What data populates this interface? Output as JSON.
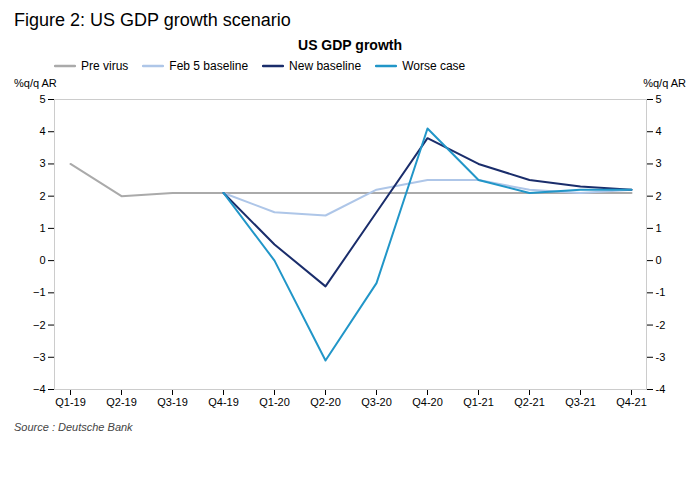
{
  "chart_data": {
    "type": "line",
    "title": "Figure 2: US GDP growth scenario",
    "subtitle": "US GDP growth",
    "ylabel": "%q/q AR",
    "y2label": "%q/q AR",
    "caption": "Source : Deutsche Bank",
    "categories": [
      "Q1-19",
      "Q2-19",
      "Q3-19",
      "Q4-19",
      "Q1-20",
      "Q2-20",
      "Q3-20",
      "Q4-20",
      "Q1-21",
      "Q2-21",
      "Q3-21",
      "Q4-21"
    ],
    "series": [
      {
        "name": "Pre virus",
        "color": "#aaaaaa",
        "values": [
          3.0,
          2.0,
          2.1,
          2.1,
          2.1,
          2.1,
          2.1,
          2.1,
          2.1,
          2.1,
          2.1,
          2.1
        ]
      },
      {
        "name": "Feb 5 baseline",
        "color": "#aec6e8",
        "values": [
          null,
          null,
          null,
          2.1,
          1.5,
          1.4,
          2.2,
          2.5,
          2.5,
          2.2,
          2.1,
          2.2
        ]
      },
      {
        "name": "New baseline",
        "color": "#1a2d6b",
        "values": [
          null,
          null,
          null,
          2.1,
          0.5,
          -0.8,
          1.5,
          3.8,
          3.0,
          2.5,
          2.3,
          2.2
        ]
      },
      {
        "name": "Worse case",
        "color": "#2196c8",
        "values": [
          null,
          null,
          null,
          2.1,
          0.0,
          -3.1,
          -0.7,
          4.1,
          2.5,
          2.1,
          2.2,
          2.2
        ]
      }
    ],
    "ylim": [
      -4,
      5
    ],
    "yticks": [
      -4,
      -3,
      -2,
      -1,
      0,
      1,
      2,
      3,
      4,
      5
    ],
    "y2lim": [
      -4,
      5
    ],
    "y2ticks": [
      -4,
      -3,
      -2,
      -1,
      0,
      1,
      2,
      3,
      4,
      5
    ],
    "grid": false,
    "legend": "top"
  }
}
